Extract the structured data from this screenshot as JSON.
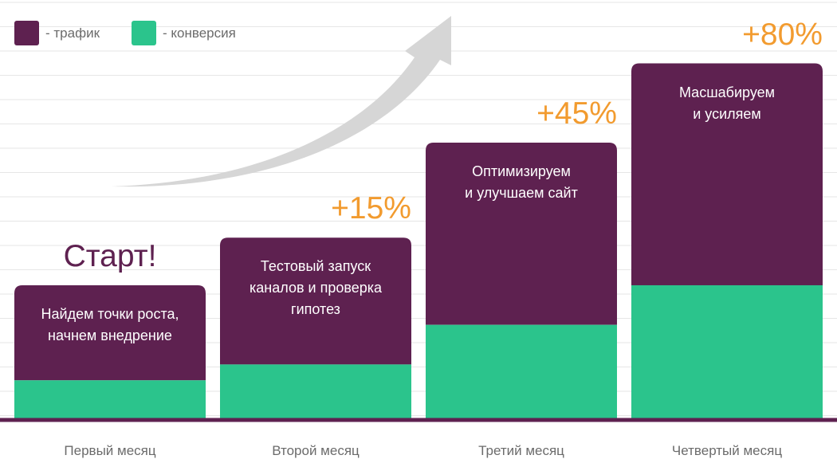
{
  "legend": {
    "traffic_label": "- трафик",
    "conversion_label": "- конверсия"
  },
  "colors": {
    "traffic": "#5e2150",
    "conversion": "#2bc48c",
    "growth_text": "#f29b2f",
    "axis": "#5e2150",
    "grid": "#e6e6e6",
    "arrow": "#d6d6d6"
  },
  "start_label": "Старт!",
  "chart_data": {
    "type": "bar",
    "stacked": true,
    "categories": [
      "Первый месяц",
      "Второй месяц",
      "Третий месяц",
      "Четвертый месяц"
    ],
    "series": [
      {
        "name": "- конверсия",
        "values": [
          50,
          70,
          120,
          170
        ]
      },
      {
        "name": "- трафик",
        "values": [
          120,
          160,
          230,
          280
        ]
      }
    ],
    "bar_texts": [
      [
        "Найдем точки роста,",
        "начнем внедрение"
      ],
      [
        "Тестовый запуск",
        "каналов и проверка",
        "гипотез"
      ],
      [
        "Оптимизируем",
        "и улучшаем сайт"
      ],
      [
        "Масшабируем",
        "и усиляем"
      ]
    ],
    "growth_labels": [
      "",
      "+15%",
      "+45%",
      "+80%"
    ],
    "ylim": [
      0,
      530
    ],
    "legend_position": "top-left",
    "grid": true
  }
}
